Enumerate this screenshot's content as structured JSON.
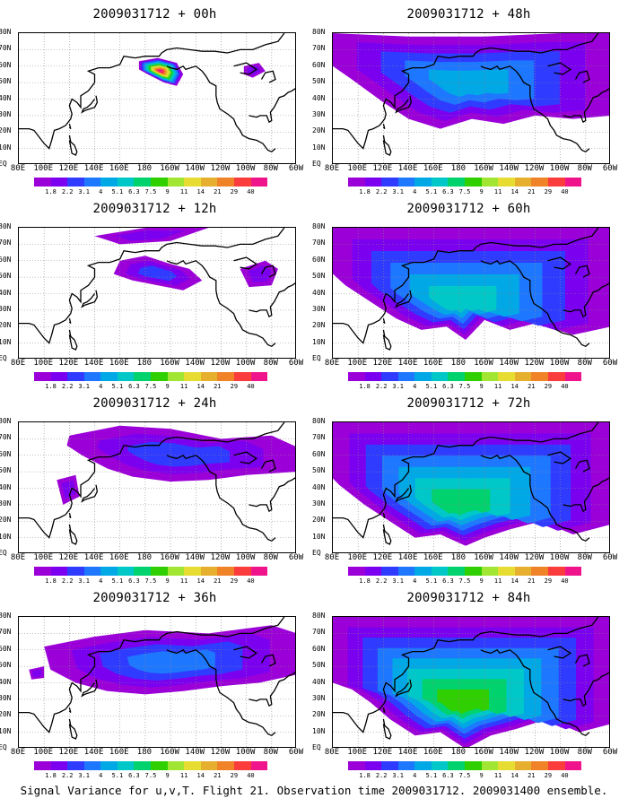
{
  "caption": "Signal Variance for u,v,T. Flight 21. Observation time 2009031712. 2009031400 ensemble.",
  "chart_data": {
    "type": "heatmap",
    "contour_levels": [
      "1.8",
      "2.2",
      "3.1",
      "4",
      "5.1",
      "6.3",
      "7.5",
      "9",
      "11",
      "14",
      "21",
      "29",
      "40"
    ],
    "level_colors": [
      "#9b00d8",
      "#7b00f0",
      "#2f3cff",
      "#1e78ff",
      "#00a8e6",
      "#00c8c8",
      "#00d26e",
      "#30d000",
      "#a0e632",
      "#e6dc32",
      "#e6af2d",
      "#f08228",
      "#fa3c3c",
      "#f0148c"
    ],
    "y_tick_labels": [
      "80N",
      "70N",
      "60N",
      "50N",
      "40N",
      "30N",
      "20N",
      "10N",
      "EQ"
    ],
    "x_tick_labels": [
      "80E",
      "100E",
      "120E",
      "140E",
      "160E",
      "180",
      "160W",
      "140W",
      "120W",
      "100W",
      "80W",
      "60W"
    ],
    "panels": [
      {
        "title": "2009031712 + 00h",
        "lead_hours": 0,
        "peak_level_index": 13
      },
      {
        "title": "2009031712 + 12h",
        "lead_hours": 12,
        "peak_level_index": 2
      },
      {
        "title": "2009031712 + 24h",
        "lead_hours": 24,
        "peak_level_index": 2
      },
      {
        "title": "2009031712 + 36h",
        "lead_hours": 36,
        "peak_level_index": 3
      },
      {
        "title": "2009031712 + 48h",
        "lead_hours": 48,
        "peak_level_index": 4
      },
      {
        "title": "2009031712 + 60h",
        "lead_hours": 60,
        "peak_level_index": 5
      },
      {
        "title": "2009031712 + 72h",
        "lead_hours": 72,
        "peak_level_index": 6
      },
      {
        "title": "2009031712 + 84h",
        "lead_hours": 84,
        "peak_level_index": 7
      }
    ]
  }
}
